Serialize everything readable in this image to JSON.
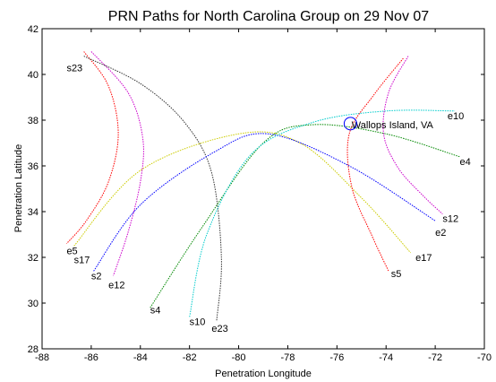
{
  "chart_data": {
    "type": "line",
    "title": "PRN Paths for North Carolina Group on 29 Nov 07",
    "xlabel": "Penetration Longitude",
    "ylabel": "Penetration Latitude",
    "xlim": [
      -88,
      -70
    ],
    "ylim": [
      28,
      42
    ],
    "xticks": [
      -88,
      -86,
      -84,
      -82,
      -80,
      -78,
      -76,
      -74,
      -72,
      -70
    ],
    "yticks": [
      28,
      30,
      32,
      34,
      36,
      38,
      40,
      42
    ],
    "grid": false,
    "legend": "none",
    "series": [
      {
        "color": "#ff0000",
        "x": [
          -86.3,
          -85.3,
          -84.9,
          -85.3,
          -86.2,
          -87.0
        ],
        "y": [
          41.0,
          39.5,
          37.4,
          35.3,
          33.6,
          32.6
        ]
      },
      {
        "color": "#cc00cc",
        "x": [
          -86.0,
          -84.5,
          -83.9,
          -84.0,
          -84.5,
          -85.1
        ],
        "y": [
          41.0,
          39.2,
          37.2,
          35.3,
          33.1,
          31.2
        ]
      },
      {
        "color": "#333333",
        "x": [
          -86.3,
          -84.0,
          -82.2,
          -81.1,
          -80.7,
          -80.9
        ],
        "y": [
          40.8,
          39.6,
          37.9,
          35.7,
          32.0,
          29.2
        ]
      },
      {
        "color": "#cccc00",
        "x": [
          -86.7,
          -84.0,
          -80.0,
          -77.5,
          -75.0,
          -73.0
        ],
        "y": [
          32.5,
          35.8,
          37.4,
          37.0,
          34.6,
          32.2
        ]
      },
      {
        "color": "#0000ff",
        "x": [
          -85.9,
          -84.0,
          -81.0,
          -78.8,
          -75.5,
          -72.0
        ],
        "y": [
          31.4,
          34.3,
          36.6,
          37.4,
          36.0,
          33.6
        ]
      },
      {
        "color": "#008800",
        "x": [
          -83.6,
          -81.5,
          -79.0,
          -77.0,
          -74.0,
          -71.0
        ],
        "y": [
          29.8,
          33.3,
          37.0,
          37.8,
          37.4,
          36.4
        ]
      },
      {
        "color": "#00cccc",
        "x": [
          -82.0,
          -81.3,
          -79.5,
          -77.0,
          -74.0,
          -71.2
        ],
        "y": [
          29.4,
          33.0,
          36.5,
          37.9,
          38.4,
          38.4
        ]
      },
      {
        "color": "#ff0000",
        "x": [
          -73.3,
          -74.5,
          -75.5,
          -75.4,
          -74.6,
          -73.9
        ],
        "y": [
          40.7,
          39.1,
          37.4,
          35.1,
          33.0,
          31.4
        ]
      },
      {
        "color": "#cc00cc",
        "x": [
          -73.1,
          -73.9,
          -74.1,
          -73.5,
          -72.5,
          -71.7
        ],
        "y": [
          40.8,
          39.2,
          37.4,
          35.9,
          34.7,
          33.9
        ]
      }
    ],
    "annotations": [
      {
        "text": "s23",
        "x": -87.0,
        "y": 40.3
      },
      {
        "text": "e5",
        "x": -87.0,
        "y": 32.3
      },
      {
        "text": "s17",
        "x": -86.7,
        "y": 31.9
      },
      {
        "text": "s2",
        "x": -86.0,
        "y": 31.2
      },
      {
        "text": "e12",
        "x": -85.3,
        "y": 30.8
      },
      {
        "text": "s4",
        "x": -83.6,
        "y": 29.7
      },
      {
        "text": "s10",
        "x": -82.0,
        "y": 29.2
      },
      {
        "text": "e23",
        "x": -81.1,
        "y": 28.9
      },
      {
        "text": "Wallops Island, VA",
        "x": -75.4,
        "y": 37.8
      },
      {
        "text": "e10",
        "x": -71.5,
        "y": 38.2
      },
      {
        "text": "e4",
        "x": -71.0,
        "y": 36.2
      },
      {
        "text": "s12",
        "x": -71.7,
        "y": 33.7
      },
      {
        "text": "e2",
        "x": -72.0,
        "y": 33.1
      },
      {
        "text": "e17",
        "x": -72.8,
        "y": 32.0
      },
      {
        "text": "s5",
        "x": -73.8,
        "y": 31.3
      }
    ],
    "marker": {
      "x": -75.45,
      "y": 37.85,
      "color": "#0000ff"
    }
  }
}
